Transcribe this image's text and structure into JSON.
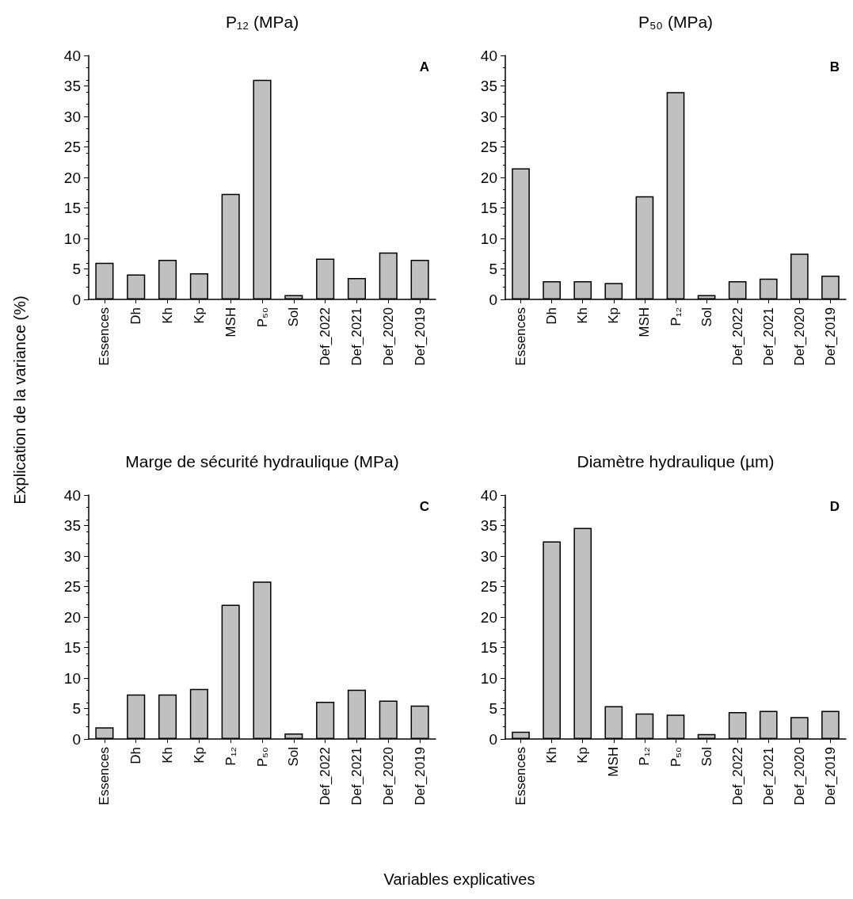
{
  "chart_data": [
    {
      "type": "bar",
      "title": "P₁₂ (MPa)",
      "ylabel": "Explication de la variance (%)",
      "annotations": [
        "A"
      ],
      "color": "#c0c0c0",
      "ylim": [
        0,
        40
      ],
      "yticks": [
        0,
        5,
        10,
        15,
        20,
        25,
        30,
        35,
        40
      ],
      "categories": [
        "Essences",
        "Dh",
        "Kh",
        "Kp",
        "MSH",
        "P₅₀",
        "Sol",
        "Def_2022",
        "Def_2021",
        "Def_2020",
        "Def_2019"
      ],
      "values": [
        6.0,
        4.1,
        6.5,
        4.3,
        17.3,
        36.0,
        0.7,
        6.7,
        3.5,
        7.7,
        6.5
      ]
    },
    {
      "type": "bar",
      "title": "P₅₀ (MPa)",
      "annotations": [
        "B"
      ],
      "color": "#c0c0c0",
      "ylim": [
        0,
        40
      ],
      "yticks": [
        0,
        5,
        10,
        15,
        20,
        25,
        30,
        35,
        40
      ],
      "categories": [
        "Essences",
        "Dh",
        "Kh",
        "Kp",
        "MSH",
        "P₁₂",
        "Sol",
        "Def_2022",
        "Def_2021",
        "Def_2020",
        "Def_2019"
      ],
      "values": [
        21.5,
        3.0,
        3.0,
        2.7,
        16.9,
        34.0,
        0.7,
        3.0,
        3.4,
        7.5,
        3.9
      ]
    },
    {
      "type": "bar",
      "title": "Marge de sécurité hydraulique (MPa)",
      "xlabel": "Variables explicatives",
      "annotations": [
        "C"
      ],
      "color": "#c0c0c0",
      "ylim": [
        0,
        40
      ],
      "yticks": [
        0,
        5,
        10,
        15,
        20,
        25,
        30,
        35,
        40
      ],
      "categories": [
        "Essences",
        "Dh",
        "Kh",
        "Kp",
        "P₁₂",
        "P₅₀",
        "Sol",
        "Def_2022",
        "Def_2021",
        "Def_2020",
        "Def_2019"
      ],
      "values": [
        1.9,
        7.3,
        7.3,
        8.2,
        22.0,
        25.8,
        0.9,
        6.1,
        8.1,
        6.3,
        5.5
      ]
    },
    {
      "type": "bar",
      "title": "Diamètre hydraulique (µm)",
      "annotations": [
        "D"
      ],
      "color": "#c0c0c0",
      "ylim": [
        0,
        40
      ],
      "yticks": [
        0,
        5,
        10,
        15,
        20,
        25,
        30,
        35,
        40
      ],
      "categories": [
        "Essences",
        "Kh",
        "Kp",
        "MSH",
        "P₁₂",
        "P₅₀",
        "Sol",
        "Def_2022",
        "Def_2021",
        "Def_2020",
        "Def_2019"
      ],
      "values": [
        1.2,
        32.4,
        34.6,
        5.4,
        4.2,
        4.0,
        0.8,
        4.4,
        4.6,
        3.6,
        4.6
      ]
    }
  ]
}
